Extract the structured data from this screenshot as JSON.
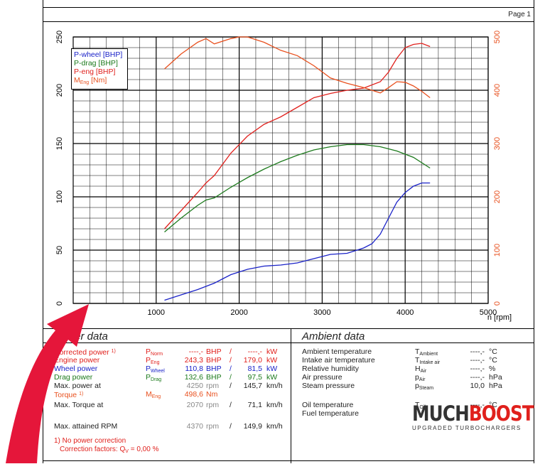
{
  "page": {
    "label": "Page 1"
  },
  "chart_data": {
    "type": "line",
    "x_label": "n [rpm]",
    "x_ticks": [
      1000,
      2000,
      3000,
      4000,
      5000
    ],
    "y_left_ticks": [
      0,
      50,
      100,
      150,
      200,
      250
    ],
    "y_right_ticks": [
      0,
      100,
      200,
      300,
      400,
      500
    ],
    "xlim": [
      0,
      5000
    ],
    "ylim_left": [
      0,
      250
    ],
    "ylim_right": [
      0,
      500
    ],
    "legend": [
      "P-wheel [BHP]",
      "P-drag [BHP]",
      "P-eng [BHP]",
      "M_Eng [Nm]"
    ],
    "legend_position": "top-left",
    "colors": {
      "wheel": "#1a22c8",
      "drag": "#1c7a1c",
      "eng": "#e0201c",
      "torque": "#e8501e"
    },
    "series": [
      {
        "name": "P-wheel [BHP]",
        "axis": "left",
        "color": "#1a22c8",
        "points": [
          [
            1100,
            3
          ],
          [
            1300,
            8
          ],
          [
            1500,
            13
          ],
          [
            1700,
            19
          ],
          [
            1900,
            27
          ],
          [
            2100,
            32
          ],
          [
            2300,
            35
          ],
          [
            2500,
            36
          ],
          [
            2700,
            38
          ],
          [
            2900,
            42
          ],
          [
            3100,
            46
          ],
          [
            3300,
            47
          ],
          [
            3500,
            52
          ],
          [
            3600,
            56
          ],
          [
            3700,
            65
          ],
          [
            3800,
            80
          ],
          [
            3900,
            95
          ],
          [
            4000,
            104
          ],
          [
            4100,
            110
          ],
          [
            4200,
            113
          ],
          [
            4300,
            113
          ]
        ]
      },
      {
        "name": "P-drag [BHP]",
        "axis": "left",
        "color": "#1c7a1c",
        "points": [
          [
            1100,
            67
          ],
          [
            1300,
            80
          ],
          [
            1500,
            92
          ],
          [
            1600,
            97
          ],
          [
            1700,
            99
          ],
          [
            1900,
            109
          ],
          [
            2100,
            118
          ],
          [
            2300,
            126
          ],
          [
            2500,
            133
          ],
          [
            2700,
            139
          ],
          [
            2900,
            144
          ],
          [
            3100,
            147
          ],
          [
            3300,
            149
          ],
          [
            3500,
            149
          ],
          [
            3700,
            147
          ],
          [
            3900,
            143
          ],
          [
            4100,
            137
          ],
          [
            4300,
            127
          ]
        ]
      },
      {
        "name": "P-eng [BHP]",
        "axis": "left",
        "color": "#e0201c",
        "points": [
          [
            1100,
            70
          ],
          [
            1300,
            87
          ],
          [
            1500,
            104
          ],
          [
            1600,
            113
          ],
          [
            1700,
            120
          ],
          [
            1900,
            141
          ],
          [
            2100,
            157
          ],
          [
            2300,
            168
          ],
          [
            2500,
            175
          ],
          [
            2700,
            184
          ],
          [
            2900,
            193
          ],
          [
            3100,
            197
          ],
          [
            3300,
            200
          ],
          [
            3500,
            202
          ],
          [
            3700,
            208
          ],
          [
            3800,
            217
          ],
          [
            3900,
            230
          ],
          [
            4000,
            240
          ],
          [
            4100,
            243
          ],
          [
            4200,
            244
          ],
          [
            4300,
            241
          ]
        ]
      },
      {
        "name": "M_Eng [Nm]",
        "axis": "right",
        "color": "#e8501e",
        "points": [
          [
            1100,
            440
          ],
          [
            1300,
            468
          ],
          [
            1500,
            490
          ],
          [
            1600,
            497
          ],
          [
            1700,
            487
          ],
          [
            1900,
            497
          ],
          [
            2000,
            500
          ],
          [
            2100,
            500
          ],
          [
            2300,
            490
          ],
          [
            2500,
            475
          ],
          [
            2700,
            465
          ],
          [
            2900,
            446
          ],
          [
            3100,
            423
          ],
          [
            3300,
            413
          ],
          [
            3500,
            405
          ],
          [
            3700,
            395
          ],
          [
            3800,
            405
          ],
          [
            3900,
            416
          ],
          [
            4000,
            415
          ],
          [
            4100,
            408
          ],
          [
            4200,
            398
          ],
          [
            4300,
            386
          ]
        ]
      }
    ]
  },
  "legend_labels": {
    "wheel": "P-wheel [BHP]",
    "drag": "P-drag [BHP]",
    "eng": "P-eng [BHP]",
    "torque_main": "M",
    "torque_sub": "Eng",
    "torque_unit": " [Nm]"
  },
  "power": {
    "title": "Power data",
    "rows": [
      {
        "label": "Corrected power",
        "sup": "1)",
        "sym": "P",
        "sub": "Norm",
        "v1": "----,-",
        "u1": "BHP",
        "sep": "/",
        "v2": "----,-",
        "u2": "kW",
        "color": "red"
      },
      {
        "label": "Engine power",
        "sup": "",
        "sym": "P",
        "sub": "Eng",
        "v1": "243,3",
        "u1": "BHP",
        "sep": "/",
        "v2": "179,0",
        "u2": "kW",
        "color": "red"
      },
      {
        "label": "Wheel power",
        "sup": "",
        "sym": "P",
        "sub": "Wheel",
        "v1": "110,8",
        "u1": "BHP",
        "sep": "/",
        "v2": "81,5",
        "u2": "kW",
        "color": "blue"
      },
      {
        "label": "Drag power",
        "sup": "",
        "sym": "P",
        "sub": "Drag",
        "v1": "132,6",
        "u1": "BHP",
        "sep": "/",
        "v2": "97,5",
        "u2": "kW",
        "color": "green"
      },
      {
        "label": "Max. power at",
        "sup": "",
        "sym": "",
        "sub": "",
        "v1": "4250",
        "u1": "rpm",
        "sep": "/",
        "v2": "145,7",
        "u2": "km/h",
        "color": "plain"
      }
    ],
    "torque_rows": [
      {
        "label": "Torque",
        "sup": "1)",
        "sym": "M",
        "sub": "Eng",
        "v1": "498,6",
        "u1": "Nm",
        "sep": "",
        "v2": "",
        "u2": "",
        "color": "orange"
      },
      {
        "label": "Max. Torque at",
        "sup": "",
        "sym": "",
        "sub": "",
        "v1": "2070",
        "u1": "rpm",
        "sep": "/",
        "v2": "71,1",
        "u2": "km/h",
        "color": "plain"
      }
    ],
    "rpm_row": {
      "label": "Max. attained RPM",
      "v1": "4370",
      "u1": "rpm",
      "sep": "/",
      "v2": "149,9",
      "u2": "km/h"
    },
    "footnote1": "1) No power correction",
    "footnote2": "Correction factors: Q",
    "footnote2_sub": "V",
    "footnote2_val": " =   0,00 %"
  },
  "ambient": {
    "title": "Ambient data",
    "rows": [
      {
        "label": "Ambient temperature",
        "sym": "T",
        "sub": "Ambient",
        "val": "----,-",
        "unit": "°C"
      },
      {
        "label": "Intake air temperature",
        "sym": "T",
        "sub": "Intake air",
        "val": "----,-",
        "unit": "°C"
      },
      {
        "label": "Relative humidity",
        "sym": "H",
        "sub": "Air",
        "val": "----,-",
        "unit": "%"
      },
      {
        "label": "Air pressure",
        "sym": "p",
        "sub": "Air",
        "val": "----,-",
        "unit": "hPa"
      },
      {
        "label": "Steam pressure",
        "sym": "p",
        "sub": "Steam",
        "val": "10,0",
        "unit": "hPa"
      }
    ],
    "rows2": [
      {
        "label": "Oil temperature",
        "sym": "T",
        "sub": "Oil",
        "val": "----,-",
        "unit": "°C"
      },
      {
        "label": "Fuel temperature",
        "sym": "",
        "sub": "",
        "val": "",
        "unit": ""
      }
    ]
  },
  "logo": {
    "word": "MUCHBOOST",
    "tagline": "UPGRADED TURBOCHARGERS"
  }
}
